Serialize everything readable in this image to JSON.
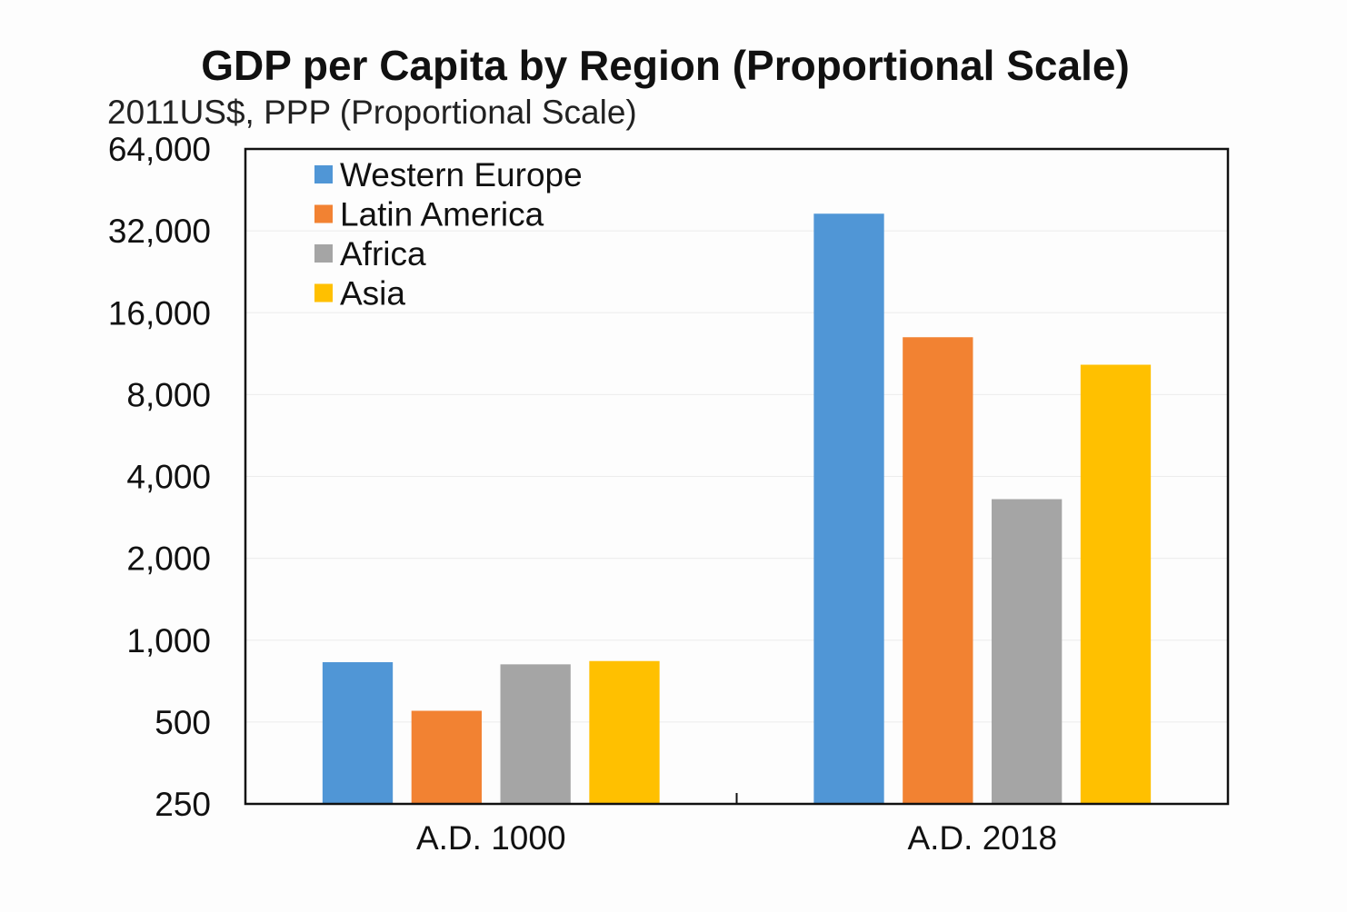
{
  "chart_data": {
    "type": "bar",
    "title": "GDP per Capita by Region (Proportional Scale)",
    "subtitle": "2011US$, PPP (Proportional Scale)",
    "xlabel": "",
    "ylabel": "",
    "y_scale": "log2",
    "ylim": [
      250,
      64000
    ],
    "y_ticks": [
      250,
      500,
      1000,
      2000,
      4000,
      8000,
      16000,
      32000,
      64000
    ],
    "y_tick_labels": [
      "250",
      "500",
      "1,000",
      "2,000",
      "4,000",
      "8,000",
      "16,000",
      "32,000",
      "64,000"
    ],
    "categories": [
      "A.D. 1000",
      "A.D. 2018"
    ],
    "series": [
      {
        "name": "Western Europe",
        "color": "#5096d6",
        "values": [
          830,
          37000
        ]
      },
      {
        "name": "Latin America",
        "color": "#f28232",
        "values": [
          550,
          13000
        ]
      },
      {
        "name": "Africa",
        "color": "#a5a5a5",
        "values": [
          815,
          3300
        ]
      },
      {
        "name": "Asia",
        "color": "#ffc000",
        "values": [
          838,
          10300
        ]
      }
    ],
    "legend_position": "top-left",
    "grid": "faint horizontal"
  }
}
